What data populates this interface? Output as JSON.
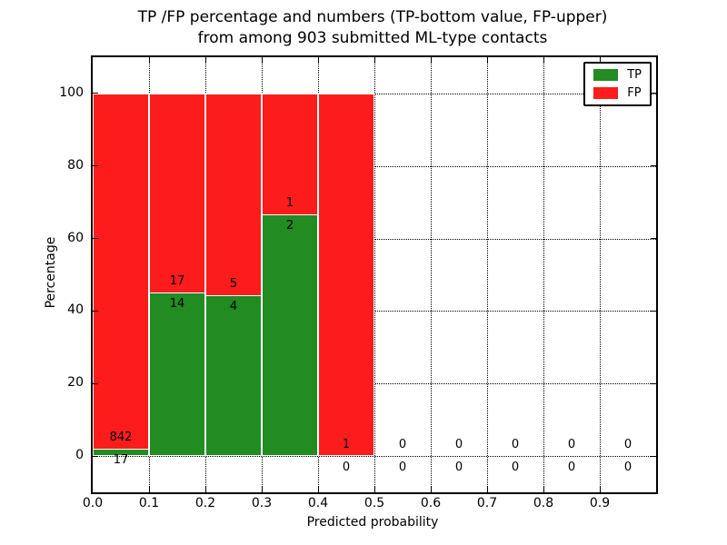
{
  "title": {
    "line1": "TP /FP percentage and numbers (TP-bottom value, FP-upper)",
    "line2": "from among 903 submitted ML-type contacts"
  },
  "colors": {
    "tp": "#228b22",
    "fp": "#fc1c1c",
    "grid": "#000000",
    "background": "#ffffff"
  },
  "chart_data": {
    "type": "bar",
    "subtype": "stacked-percentage-histogram",
    "title": "TP /FP percentage and numbers (TP-bottom value, FP-upper) from among 903 submitted ML-type contacts",
    "xlabel": "Predicted probability",
    "ylabel": "Percentage",
    "xlim": [
      0.0,
      1.0
    ],
    "ylim": [
      -10,
      110
    ],
    "grid": "dotted",
    "legend_position": "upper right",
    "total_contacts": 903,
    "x_ticks": [
      {
        "value": 0.0,
        "label": "0.0"
      },
      {
        "value": 0.1,
        "label": "0.1"
      },
      {
        "value": 0.2,
        "label": "0.2"
      },
      {
        "value": 0.3,
        "label": "0.3"
      },
      {
        "value": 0.4,
        "label": "0.4"
      },
      {
        "value": 0.5,
        "label": "0.5"
      },
      {
        "value": 0.6,
        "label": "0.6"
      },
      {
        "value": 0.7,
        "label": "0.7"
      },
      {
        "value": 0.8,
        "label": "0.8"
      },
      {
        "value": 0.9,
        "label": "0.9"
      }
    ],
    "y_ticks": [
      {
        "value": 0,
        "label": "0"
      },
      {
        "value": 20,
        "label": "20"
      },
      {
        "value": 40,
        "label": "40"
      },
      {
        "value": 60,
        "label": "60"
      },
      {
        "value": 80,
        "label": "80"
      },
      {
        "value": 100,
        "label": "100"
      }
    ],
    "legend": {
      "entries": [
        {
          "name": "tp",
          "label": "TP",
          "color": "#228b22"
        },
        {
          "name": "fp",
          "label": "FP",
          "color": "#fc1c1c"
        }
      ]
    },
    "bin_width": 0.1,
    "bins": [
      {
        "x_start": 0.0,
        "x_end": 0.1,
        "tp": 17,
        "fp": 842,
        "tp_pct": 1.98,
        "fp_pct": 98.02
      },
      {
        "x_start": 0.1,
        "x_end": 0.2,
        "tp": 14,
        "fp": 17,
        "tp_pct": 45.16,
        "fp_pct": 54.84
      },
      {
        "x_start": 0.2,
        "x_end": 0.3,
        "tp": 4,
        "fp": 5,
        "tp_pct": 44.44,
        "fp_pct": 55.56
      },
      {
        "x_start": 0.3,
        "x_end": 0.4,
        "tp": 2,
        "fp": 1,
        "tp_pct": 66.67,
        "fp_pct": 33.33
      },
      {
        "x_start": 0.4,
        "x_end": 0.5,
        "tp": 0,
        "fp": 1,
        "tp_pct": 0,
        "fp_pct": 100
      },
      {
        "x_start": 0.5,
        "x_end": 0.6,
        "tp": 0,
        "fp": 0,
        "tp_pct": 0,
        "fp_pct": 0
      },
      {
        "x_start": 0.6,
        "x_end": 0.7,
        "tp": 0,
        "fp": 0,
        "tp_pct": 0,
        "fp_pct": 0
      },
      {
        "x_start": 0.7,
        "x_end": 0.8,
        "tp": 0,
        "fp": 0,
        "tp_pct": 0,
        "fp_pct": 0
      },
      {
        "x_start": 0.8,
        "x_end": 0.9,
        "tp": 0,
        "fp": 0,
        "tp_pct": 0,
        "fp_pct": 0
      },
      {
        "x_start": 0.9,
        "x_end": 1.0,
        "tp": 0,
        "fp": 0,
        "tp_pct": 0,
        "fp_pct": 0
      }
    ]
  }
}
